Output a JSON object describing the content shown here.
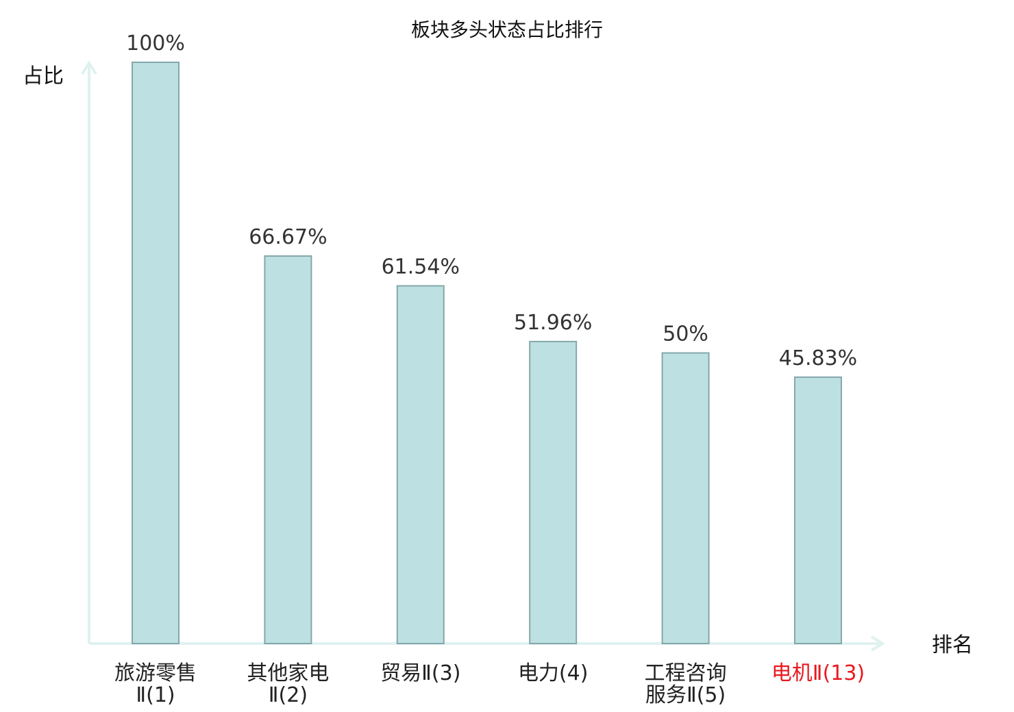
{
  "chart_data": {
    "type": "bar",
    "title": "板块多头状态占比排行",
    "ylabel": "占比",
    "xlabel": "排名",
    "ylim": [
      0,
      100
    ],
    "grid": false,
    "categories": [
      [
        "旅游零售",
        "Ⅱ(1)"
      ],
      [
        "其他家电",
        "Ⅱ(2)"
      ],
      [
        "贸易Ⅱ(3)"
      ],
      [
        "电力(4)"
      ],
      [
        "工程咨询",
        "服务Ⅱ(5)"
      ],
      [
        "电机Ⅱ(13)"
      ]
    ],
    "values": [
      100,
      66.67,
      61.54,
      51.96,
      50,
      45.83
    ],
    "value_labels": [
      "100%",
      "66.67%",
      "61.54%",
      "51.96%",
      "50%",
      "45.83%"
    ],
    "highlight_index": 5,
    "colors": {
      "bar_fill": "#bde1e3",
      "bar_stroke": "#84a7aa",
      "axis": "#dff2ef",
      "highlight": "#e8191f"
    }
  }
}
